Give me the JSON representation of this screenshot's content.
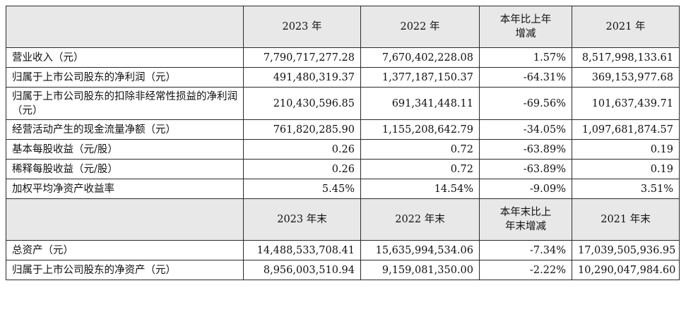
{
  "header1": [
    "",
    "2023 年",
    "2022 年",
    "本年比上年\n增减",
    "2021 年"
  ],
  "section1": [
    {
      "label": "营业收入（元）",
      "v2023": "7,790,717,277.28",
      "v2022": "7,670,402,228.08",
      "change": "1.57%",
      "v2021": "8,517,998,133.61"
    },
    {
      "label": "归属于上市公司股东的净利润（元）",
      "v2023": "491,480,319.37",
      "v2022": "1,377,187,150.37",
      "change": "-64.31%",
      "v2021": "369,153,977.68"
    },
    {
      "label": "归属于上市公司股东的扣除非经常性损益的净利润（元）",
      "v2023": "210,430,596.85",
      "v2022": "691,341,448.11",
      "change": "-69.56%",
      "v2021": "101,637,439.71"
    },
    {
      "label": "经营活动产生的现金流量净额（元）",
      "v2023": "761,820,285.90",
      "v2022": "1,155,208,642.79",
      "change": "-34.05%",
      "v2021": "1,097,681,874.57"
    },
    {
      "label": "基本每股收益（元/股）",
      "v2023": "0.26",
      "v2022": "0.72",
      "change": "-63.89%",
      "v2021": "0.19"
    },
    {
      "label": "稀释每股收益（元/股）",
      "v2023": "0.26",
      "v2022": "0.72",
      "change": "-63.89%",
      "v2021": "0.19"
    },
    {
      "label": "加权平均净资产收益率",
      "v2023": "5.45%",
      "v2022": "14.54%",
      "change": "-9.09%",
      "v2021": "3.51%"
    }
  ],
  "header2": [
    "",
    "2023 年末",
    "2022 年末",
    "本年末比上\n年末增减",
    "2021 年末"
  ],
  "section2": [
    {
      "label": "总资产（元）",
      "v2023": "14,488,533,708.41",
      "v2022": "15,635,994,534.06",
      "change": "-7.34%",
      "v2021": "17,039,505,936.95"
    },
    {
      "label": "归属于上市公司股东的净资产（元）",
      "v2023": "8,956,003,510.94",
      "v2022": "9,159,081,350.00",
      "change": "-2.22%",
      "v2021": "10,290,047,984.60"
    }
  ]
}
